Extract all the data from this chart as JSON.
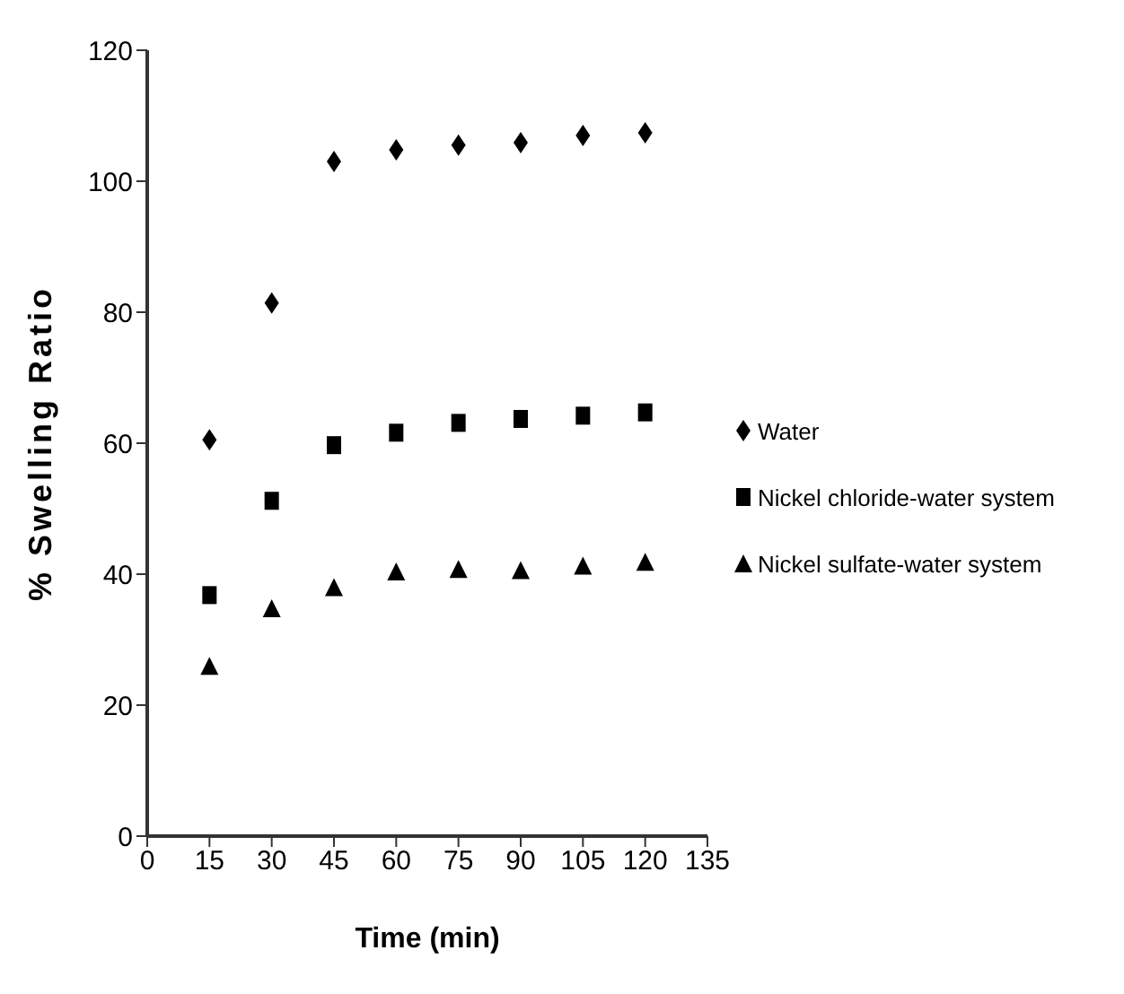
{
  "chart_data": {
    "type": "scatter",
    "xlabel": "Time (min)",
    "ylabel": "% Swelling Ratio",
    "x": [
      15,
      30,
      45,
      60,
      75,
      90,
      105,
      120
    ],
    "series": [
      {
        "name": "Water",
        "color": "#000000",
        "marker": "diamond",
        "values": [
          60.5,
          81.4,
          103,
          104.8,
          105.5,
          105.9,
          107,
          107.4
        ]
      },
      {
        "name": "Nickel chloride-water system",
        "color": "#000000",
        "marker": "square",
        "values": [
          36.8,
          51.2,
          59.7,
          61.6,
          63.1,
          63.7,
          64.2,
          64.7
        ]
      },
      {
        "name": "Nickel sulfate-water system",
        "color": "#000000",
        "marker": "triangle",
        "values": [
          26,
          34.8,
          38,
          40.4,
          40.8,
          40.6,
          41.3,
          41.9
        ]
      }
    ],
    "xlim": [
      0,
      135
    ],
    "xticks": [
      0,
      15,
      30,
      45,
      60,
      75,
      90,
      105,
      120,
      135
    ],
    "ylim": [
      0,
      120
    ],
    "yticks": [
      0,
      20,
      40,
      60,
      80,
      100,
      120
    ],
    "grid": false,
    "legend": "right"
  }
}
